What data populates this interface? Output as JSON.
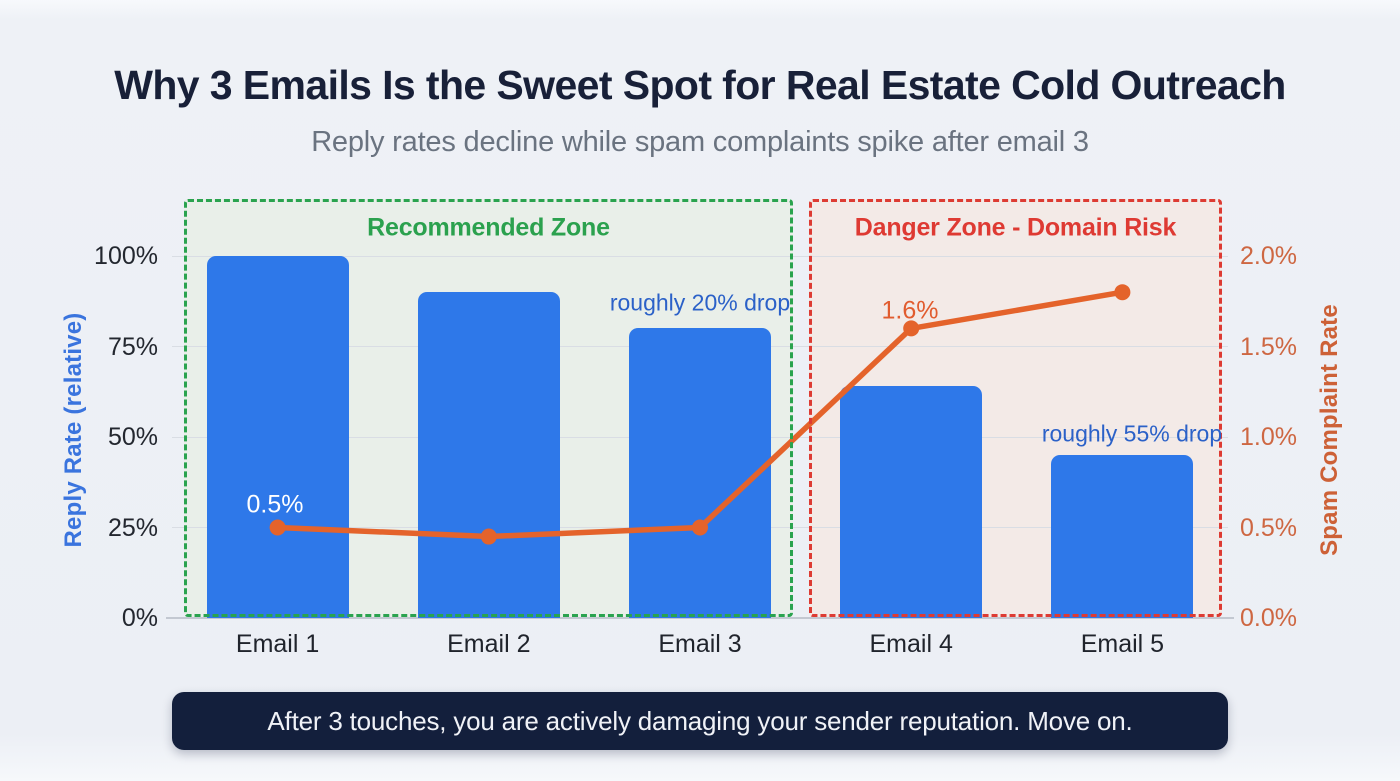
{
  "header": {
    "title": "Why 3 Emails Is the Sweet Spot for Real Estate Cold Outreach",
    "subtitle": "Reply rates decline while spam complaints spike after email 3"
  },
  "footer": {
    "banner": "After 3 touches, you are actively damaging your sender reputation. Move on.",
    "banner_bg": "#131f3c",
    "banner_text_color": "#f0f2f7"
  },
  "colors": {
    "page_background": "#edf0f5",
    "title": "#182038",
    "subtitle": "#6a7380",
    "gridline": "#d9dde4",
    "baseline": "#c3c8d1",
    "x_label": "#20242c"
  },
  "chart_data": {
    "type": "bar",
    "subtype": "combo-bar-line-dual-axis",
    "categories": [
      "Email 1",
      "Email 2",
      "Email 3",
      "Email 4",
      "Email 5"
    ],
    "series": [
      {
        "name": "Reply Rate (relative)",
        "type": "bar",
        "axis": "left",
        "values": [
          100,
          90,
          80,
          64,
          45
        ],
        "unit": "%",
        "color": "#2e78e9"
      },
      {
        "name": "Spam Complaint Rate",
        "type": "line",
        "axis": "right",
        "values": [
          0.5,
          0.45,
          0.5,
          1.6,
          1.8
        ],
        "unit": "%",
        "color": "#e4632b"
      }
    ],
    "left_axis": {
      "label": "Reply Rate (relative)",
      "ticks": [
        "0%",
        "25%",
        "50%",
        "75%",
        "100%"
      ],
      "range": [
        0,
        100
      ],
      "label_color": "#3a74de",
      "tick_color": "#23272f"
    },
    "right_axis": {
      "label": "Spam Complaint Rate",
      "ticks": [
        "0.0%",
        "0.5%",
        "1.0%",
        "1.5%",
        "2.0%"
      ],
      "range": [
        0,
        2
      ],
      "label_color": "#cd6137",
      "tick_color": "#ce6742"
    },
    "zones": [
      {
        "label": "Recommended Zone",
        "categories": [
          "Email 1",
          "Email 2",
          "Email 3"
        ],
        "text_color": "#2ba14e",
        "border_color": "#2aa34f",
        "background": "#e9efe9"
      },
      {
        "label": "Danger Zone - Domain Risk",
        "categories": [
          "Email 4",
          "Email 5"
        ],
        "text_color": "#de3a33",
        "border_color": "#dd3b33",
        "background": "#f3eae7"
      }
    ],
    "annotations": [
      {
        "text": "0.5%",
        "attached_to": "Email 1",
        "color": "#ffffff",
        "size": 25
      },
      {
        "text": "1.6%",
        "attached_to": "Email 4",
        "color": "#e15c2f",
        "size": 25
      },
      {
        "text": "roughly 20% drop",
        "attached_to": "Email 3",
        "color": "#2b61c8",
        "size": 23
      },
      {
        "text": "roughly 55% drop",
        "attached_to": "Email 5",
        "color": "#2b61c8",
        "size": 23
      }
    ],
    "grid": true,
    "legend": "none"
  }
}
